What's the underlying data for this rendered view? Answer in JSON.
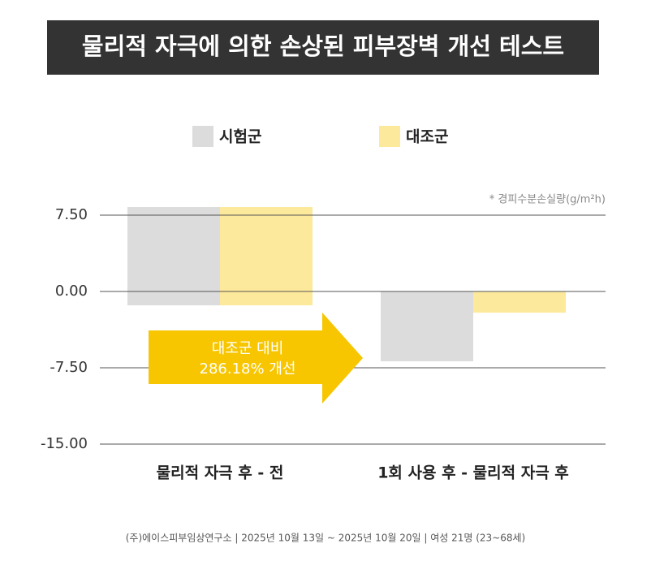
{
  "chart_data": {
    "type": "floating-bar",
    "title": "물리적 자극에 의한 손상된 피부장벽 개선 테스트",
    "unit_note": "* 경피수분손실량(g/m²h)",
    "categories": [
      "물리적 자극 후 - 전",
      "1회 사용 후 - 물리적 자극 후"
    ],
    "series": [
      {
        "name": "시험군",
        "color": "#dcdcdc",
        "bases": [
          -1.36,
          0
        ],
        "values": [
          8.3,
          -6.86
        ]
      },
      {
        "name": "대조군",
        "color": "#fde99b",
        "bases": [
          -1.36,
          0
        ],
        "values": [
          8.3,
          -2.08
        ]
      }
    ],
    "ylim": [
      -15,
      9.5
    ],
    "yticks": [
      {
        "value": -15,
        "label": "-15.00"
      },
      {
        "value": -7.5,
        "label": "-7.50"
      },
      {
        "value": 0,
        "label": "0.00"
      },
      {
        "value": 7.5,
        "label": "7.50"
      }
    ],
    "grid": true,
    "annotation": [
      "대조군 대비",
      "286.18% 개선"
    ],
    "footer": "(주)에이스피부임상연구소 | 2025년 10월 13일 ~ 2025년 10월 20일 | 여성 21명 (23~68세)"
  }
}
